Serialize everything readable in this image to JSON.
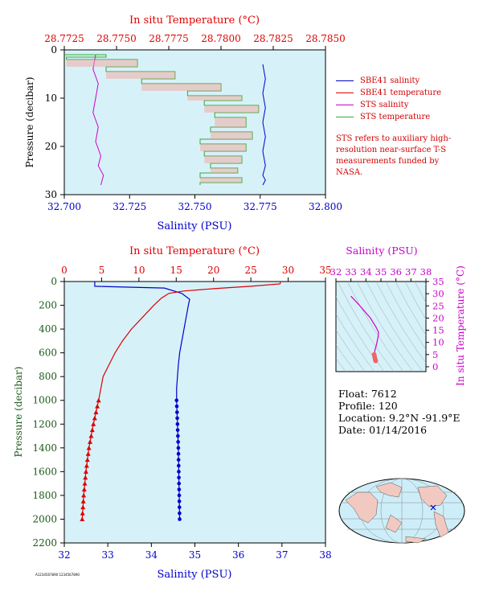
{
  "top": {
    "title_top": "In situ Temperature (°C)",
    "xlabel": "Salinity (PSU)",
    "ylabel": "Pressure (decibar)"
  },
  "bottom": {
    "title_top": "In situ Temperature (°C)",
    "xlabel": "Salinity (PSU)",
    "ylabel": "Pressure (decibar)"
  },
  "ts": {
    "title_top": "Salinity (PSU)",
    "ylabel": "In situ Temperature (°C)"
  },
  "legend": {
    "items": [
      {
        "label": "SBE41 salinity",
        "color": "#0000cc"
      },
      {
        "label": "SBE41 temperature",
        "color": "#dd0000"
      },
      {
        "label": "STS salinity",
        "color": "#cc00cc"
      },
      {
        "label": "STS temperature",
        "color": "#33aa33"
      }
    ],
    "note": "STS refers to auxiliary high-resolution near-surface T-S measurements funded by NASA."
  },
  "info": {
    "float": "Float:  7612",
    "profile": "Profile:  120",
    "location": "Location:  9.2°N  -91.9°E",
    "date": "Date:  01/14/2016"
  },
  "stamp": "A1234567890 1234567890",
  "colors": {
    "salinity": "#0000cc",
    "temperature": "#dd0000",
    "sts_salinity": "#cc00cc",
    "sts_temperature": "#33aa33",
    "plot_bg": "#d7f1f9"
  },
  "chart_data": [
    {
      "type": "line",
      "title": "In situ Temperature (°C)",
      "xlabel": "Salinity (PSU)",
      "ylabel": "Pressure (decibar)",
      "xlim": [
        32.7,
        32.8
      ],
      "x_ticks": [
        "32.700",
        "32.725",
        "32.750",
        "32.775",
        "32.800"
      ],
      "x2lim": [
        28.7725,
        28.785
      ],
      "x2_ticks": [
        "28.7725",
        "28.7750",
        "28.7775",
        "28.7800",
        "28.7825",
        "28.7850"
      ],
      "ylim": [
        0,
        30
      ],
      "y_ticks": [
        0,
        10,
        20,
        30
      ],
      "y_reversed": true,
      "series": [
        {
          "name": "SBE41 salinity",
          "axis": "bottom",
          "x": [
            32.776,
            32.777,
            32.776,
            32.777,
            32.776,
            32.777,
            32.776,
            32.777,
            32.776,
            32.777,
            32.776
          ],
          "y": [
            3,
            6,
            9,
            12,
            15,
            18,
            21,
            24,
            26,
            27,
            28
          ]
        },
        {
          "name": "SBE41 temperature",
          "axis": "top",
          "x": [
            28.7725,
            28.7725
          ],
          "y": [
            0,
            0
          ]
        },
        {
          "name": "STS salinity",
          "axis": "bottom",
          "x": [
            32.712,
            32.711,
            32.713,
            32.712,
            32.711,
            32.713,
            32.712,
            32.714,
            32.713,
            32.715,
            32.714
          ],
          "y": [
            1,
            4,
            7,
            10,
            13,
            16,
            19,
            22,
            24,
            26,
            28
          ]
        },
        {
          "name": "STS temperature",
          "axis": "top",
          "x": [
            28.7725,
            28.7745,
            28.7726,
            28.776,
            28.7745,
            28.7778,
            28.7762,
            28.78,
            28.7784,
            28.781,
            28.7792,
            28.7818,
            28.7797,
            28.7812,
            28.7795,
            28.7815,
            28.779,
            28.7812,
            28.7792,
            28.781,
            28.7795,
            28.7808,
            28.779,
            28.781,
            28.779
          ],
          "y": [
            1,
            1.5,
            2,
            3.5,
            4.5,
            6,
            7,
            8.5,
            9.5,
            10.5,
            11.5,
            13,
            14,
            16,
            17,
            18.5,
            19.5,
            21,
            22,
            23.5,
            24.5,
            25.5,
            26.5,
            27.5,
            28
          ]
        }
      ]
    },
    {
      "type": "line",
      "title": "In situ Temperature (°C)",
      "xlabel": "Salinity (PSU)",
      "ylabel": "Pressure (decibar)",
      "xlim": [
        32,
        38
      ],
      "x_ticks": [
        32,
        33,
        34,
        35,
        36,
        37,
        38
      ],
      "x2lim": [
        0,
        35
      ],
      "x2_ticks": [
        0,
        5,
        10,
        15,
        20,
        25,
        30,
        35
      ],
      "ylim": [
        0,
        2200
      ],
      "y_ticks": [
        0,
        200,
        400,
        600,
        800,
        1000,
        1200,
        1400,
        1600,
        1800,
        2000,
        2200
      ],
      "y_reversed": true,
      "series": [
        {
          "name": "SBE41 salinity",
          "axis": "bottom",
          "x": [
            32.7,
            32.7,
            33.2,
            34.3,
            34.7,
            34.88,
            34.85,
            34.8,
            34.75,
            34.7,
            34.65,
            34.62,
            34.6,
            34.58,
            34.58,
            34.6,
            34.62,
            34.63,
            34.64,
            34.65
          ],
          "y": [
            0,
            40,
            45,
            55,
            100,
            150,
            200,
            300,
            400,
            500,
            600,
            700,
            800,
            900,
            1000,
            1200,
            1400,
            1600,
            1800,
            2000
          ]
        },
        {
          "name": "SBE41 temperature",
          "axis": "top",
          "x": [
            29.0,
            28.9,
            25.0,
            20.0,
            16.0,
            14.0,
            13.0,
            12.0,
            10.5,
            9.0,
            7.8,
            6.8,
            6.0,
            5.2,
            4.6,
            3.9,
            3.3,
            2.9,
            2.6,
            2.4
          ],
          "y": [
            0,
            20,
            40,
            60,
            80,
            100,
            140,
            200,
            300,
            400,
            500,
            600,
            700,
            800,
            1000,
            1200,
            1400,
            1600,
            1800,
            2000
          ]
        }
      ]
    },
    {
      "type": "line",
      "title": "Salinity (PSU)",
      "ylabel": "In situ Temperature (°C)",
      "xlim": [
        32,
        38
      ],
      "x_ticks": [
        32,
        33,
        34,
        35,
        36,
        37,
        38
      ],
      "ylim": [
        -2,
        35
      ],
      "y_ticks": [
        0,
        5,
        10,
        15,
        20,
        25,
        30,
        35
      ],
      "series": [
        {
          "name": "T-S profile",
          "x": [
            33.0,
            33.6,
            34.3,
            34.7,
            34.85,
            34.8,
            34.7,
            34.6,
            34.55,
            34.58,
            34.62,
            34.65
          ],
          "y": [
            29.0,
            25.0,
            20.0,
            16.0,
            14.0,
            12.0,
            9.0,
            6.8,
            5.0,
            4.0,
            3.0,
            2.4
          ]
        }
      ]
    }
  ]
}
